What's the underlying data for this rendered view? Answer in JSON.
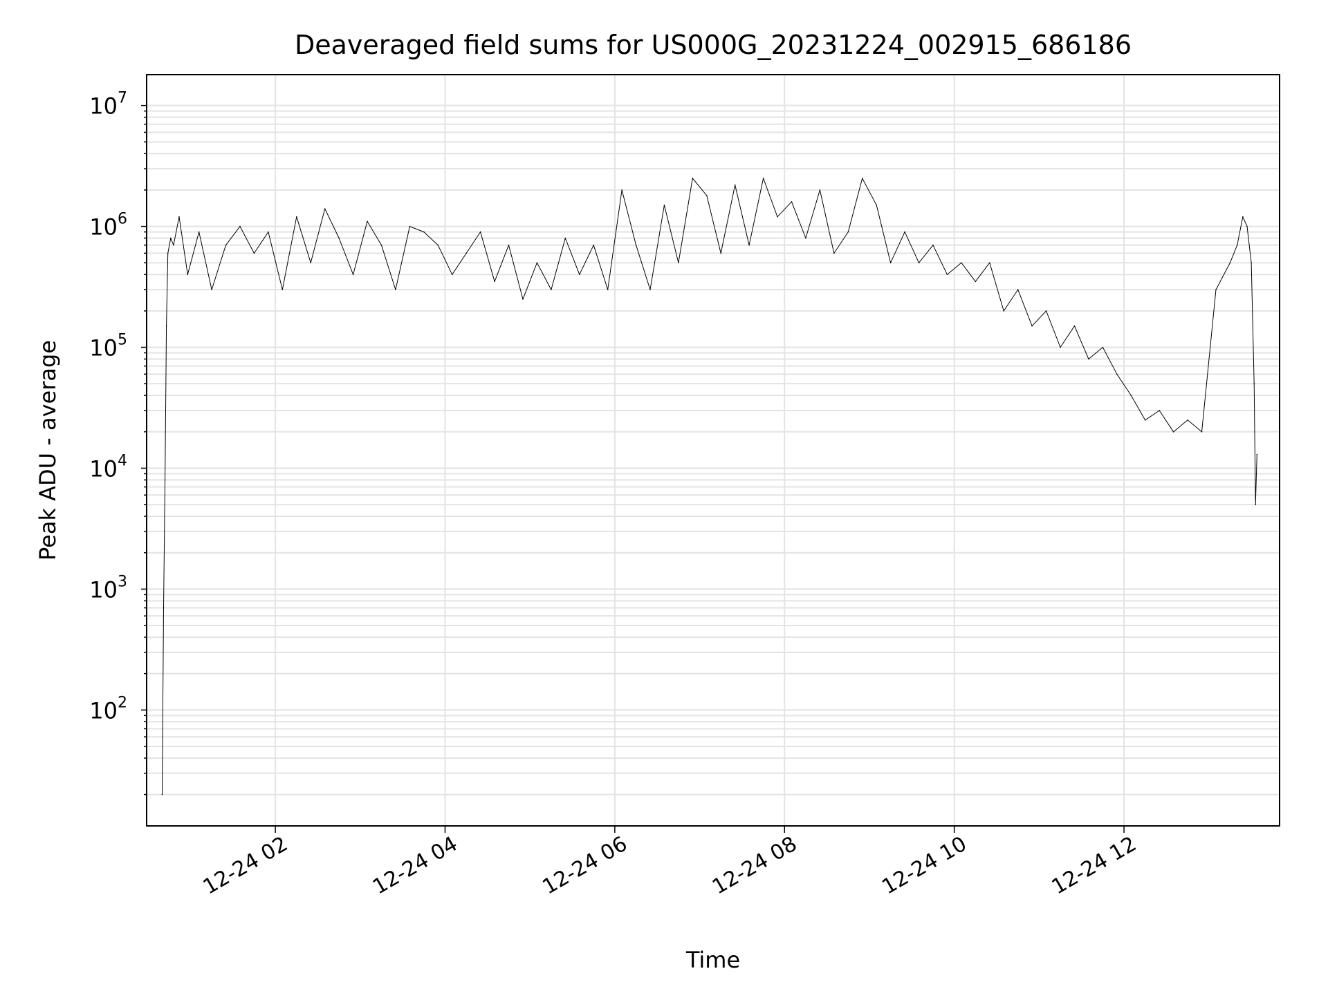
{
  "chart_data": {
    "type": "line",
    "title": "Deaveraged field sums for US000G_20231224_002915_686186",
    "xlabel": "Time",
    "ylabel": "Peak ADU - average",
    "yscale": "log",
    "grid": true,
    "colors": {
      "line": "#000000",
      "grid": "#e3e3e3",
      "axes": "#000000",
      "background": "#ffffff"
    },
    "xlim": [
      "2023-12-24 00:29",
      "2023-12-24 13:50"
    ],
    "ylim": [
      11,
      18000000
    ],
    "x_ticks": [
      "2023-12-24 02:00",
      "2023-12-24 04:00",
      "2023-12-24 06:00",
      "2023-12-24 08:00",
      "2023-12-24 10:00",
      "2023-12-24 12:00"
    ],
    "x_tick_labels": [
      "12-24 02",
      "12-24 04",
      "12-24 06",
      "12-24 08",
      "12-24 10",
      "12-24 12"
    ],
    "y_ticks": [
      {
        "value": 100,
        "base": "10",
        "exp": "2"
      },
      {
        "value": 1000,
        "base": "10",
        "exp": "3"
      },
      {
        "value": 10000,
        "base": "10",
        "exp": "4"
      },
      {
        "value": 100000,
        "base": "10",
        "exp": "5"
      },
      {
        "value": 1000000,
        "base": "10",
        "exp": "6"
      },
      {
        "value": 10000000,
        "base": "10",
        "exp": "7"
      }
    ],
    "series": [
      {
        "line_width": 1,
        "x": [
          "2023-12-24 00:40",
          "2023-12-24 00:41",
          "2023-12-24 00:42",
          "2023-12-24 00:43",
          "2023-12-24 00:44",
          "2023-12-24 00:46",
          "2023-12-24 00:48",
          "2023-12-24 00:52",
          "2023-12-24 00:58",
          "2023-12-24 01:06",
          "2023-12-24 01:15",
          "2023-12-24 01:25",
          "2023-12-24 01:35",
          "2023-12-24 01:45",
          "2023-12-24 01:55",
          "2023-12-24 02:05",
          "2023-12-24 02:15",
          "2023-12-24 02:25",
          "2023-12-24 02:35",
          "2023-12-24 02:45",
          "2023-12-24 02:55",
          "2023-12-24 03:05",
          "2023-12-24 03:15",
          "2023-12-24 03:25",
          "2023-12-24 03:35",
          "2023-12-24 03:45",
          "2023-12-24 03:55",
          "2023-12-24 04:05",
          "2023-12-24 04:15",
          "2023-12-24 04:25",
          "2023-12-24 04:35",
          "2023-12-24 04:45",
          "2023-12-24 04:55",
          "2023-12-24 05:05",
          "2023-12-24 05:15",
          "2023-12-24 05:25",
          "2023-12-24 05:35",
          "2023-12-24 05:45",
          "2023-12-24 05:55",
          "2023-12-24 06:05",
          "2023-12-24 06:15",
          "2023-12-24 06:25",
          "2023-12-24 06:35",
          "2023-12-24 06:45",
          "2023-12-24 06:55",
          "2023-12-24 07:05",
          "2023-12-24 07:15",
          "2023-12-24 07:25",
          "2023-12-24 07:35",
          "2023-12-24 07:45",
          "2023-12-24 07:55",
          "2023-12-24 08:05",
          "2023-12-24 08:15",
          "2023-12-24 08:25",
          "2023-12-24 08:35",
          "2023-12-24 08:45",
          "2023-12-24 08:55",
          "2023-12-24 09:05",
          "2023-12-24 09:15",
          "2023-12-24 09:25",
          "2023-12-24 09:35",
          "2023-12-24 09:45",
          "2023-12-24 09:55",
          "2023-12-24 10:05",
          "2023-12-24 10:15",
          "2023-12-24 10:25",
          "2023-12-24 10:35",
          "2023-12-24 10:45",
          "2023-12-24 10:55",
          "2023-12-24 11:05",
          "2023-12-24 11:15",
          "2023-12-24 11:25",
          "2023-12-24 11:35",
          "2023-12-24 11:45",
          "2023-12-24 11:55",
          "2023-12-24 12:05",
          "2023-12-24 12:15",
          "2023-12-24 12:25",
          "2023-12-24 12:35",
          "2023-12-24 12:45",
          "2023-12-24 12:55",
          "2023-12-24 13:05",
          "2023-12-24 13:15",
          "2023-12-24 13:20",
          "2023-12-24 13:24",
          "2023-12-24 13:27",
          "2023-12-24 13:30",
          "2023-12-24 13:32",
          "2023-12-24 13:33",
          "2023-12-24 13:34"
        ],
        "y": [
          20,
          700,
          8000,
          150000,
          600000,
          800000,
          700000,
          1200000,
          400000,
          900000,
          300000,
          700000,
          1000000,
          600000,
          900000,
          300000,
          1200000,
          500000,
          1400000,
          800000,
          400000,
          1100000,
          700000,
          300000,
          1000000,
          900000,
          700000,
          400000,
          600000,
          900000,
          350000,
          700000,
          250000,
          500000,
          300000,
          800000,
          400000,
          700000,
          300000,
          2000000,
          700000,
          300000,
          1500000,
          500000,
          2500000,
          1800000,
          600000,
          2200000,
          700000,
          2500000,
          1200000,
          1600000,
          800000,
          2000000,
          600000,
          900000,
          2500000,
          1500000,
          500000,
          900000,
          500000,
          700000,
          400000,
          500000,
          350000,
          500000,
          200000,
          300000,
          150000,
          200000,
          100000,
          150000,
          80000,
          100000,
          60000,
          40000,
          25000,
          30000,
          20000,
          25000,
          20000,
          300000,
          500000,
          700000,
          1200000,
          1000000,
          500000,
          50000,
          5000,
          13000
        ]
      }
    ],
    "envelope_note": ""
  }
}
